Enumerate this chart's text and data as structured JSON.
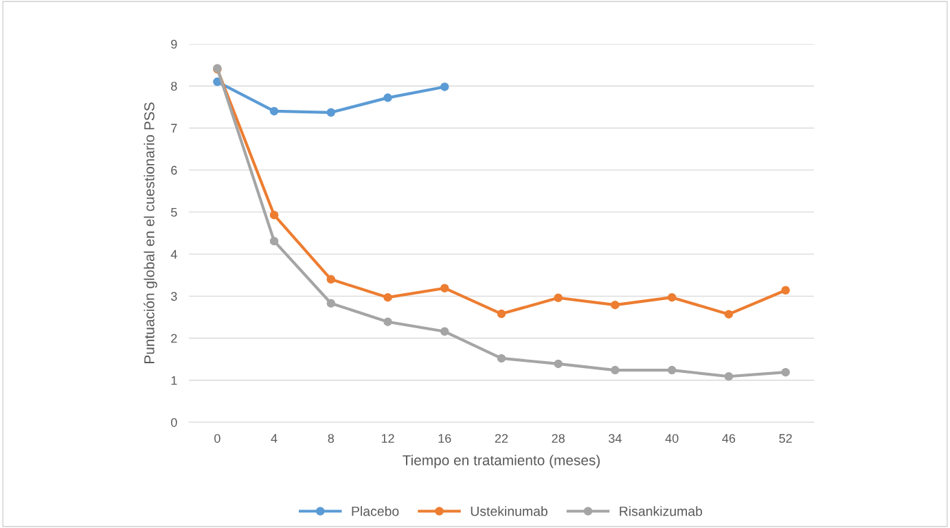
{
  "chart_data": {
    "type": "line",
    "xlabel": "Tiempo en tratamiento (meses)",
    "ylabel": "Puntuación global en el cuestionario PSS",
    "categories": [
      "0",
      "4",
      "8",
      "12",
      "16",
      "22",
      "28",
      "34",
      "40",
      "46",
      "52"
    ],
    "series": [
      {
        "name": "Placebo",
        "color": "#5b9bd5",
        "values": [
          8.1,
          7.4,
          7.37,
          7.72,
          7.98,
          null,
          null,
          null,
          null,
          null,
          null
        ]
      },
      {
        "name": "Ustekinumab",
        "color": "#ed7d31",
        "values": [
          8.4,
          4.93,
          3.4,
          2.97,
          3.19,
          2.58,
          2.96,
          2.79,
          2.97,
          2.57,
          3.14
        ]
      },
      {
        "name": "Risankizumab",
        "color": "#a5a5a5",
        "values": [
          8.42,
          4.31,
          2.83,
          2.39,
          2.16,
          1.52,
          1.39,
          1.24,
          1.24,
          1.09,
          1.19
        ]
      }
    ],
    "ylim": [
      0,
      9
    ],
    "yticks": [
      0,
      1,
      2,
      3,
      4,
      5,
      6,
      7,
      8,
      9
    ],
    "grid": "y",
    "legend": "bottom",
    "marker": "circle",
    "line_style": "solid"
  }
}
